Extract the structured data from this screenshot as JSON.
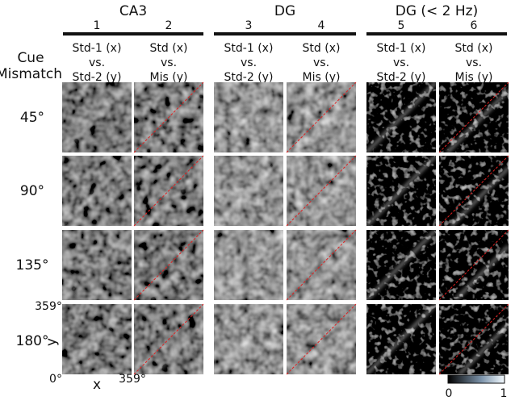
{
  "groups": [
    {
      "title": "CA3",
      "columns": [
        {
          "number": "1",
          "label": [
            "Std-1 (x)",
            "vs.",
            "Std-2 (y)"
          ]
        },
        {
          "number": "2",
          "label": [
            "Std (x)",
            "vs.",
            "Mis (y)"
          ]
        }
      ]
    },
    {
      "title": "DG",
      "columns": [
        {
          "number": "3",
          "label": [
            "Std-1 (x)",
            "vs.",
            "Std-2 (y)"
          ]
        },
        {
          "number": "4",
          "label": [
            "Std (x)",
            "vs.",
            "Mis (y)"
          ]
        }
      ]
    },
    {
      "title": "DG (< 2 Hz)",
      "columns": [
        {
          "number": "5",
          "label": [
            "Std-1 (x)",
            "vs.",
            "Std-2 (y)"
          ]
        },
        {
          "number": "6",
          "label": [
            "Std (x)",
            "vs.",
            "Mis (y)"
          ]
        }
      ]
    }
  ],
  "row_header": [
    "Cue",
    "Mismatch"
  ],
  "rows": [
    "45°",
    "90°",
    "135°",
    "180°"
  ],
  "axis": {
    "y_max": "359°",
    "y_label": "y",
    "x_min": "0°",
    "x_label": "x",
    "x_max": "359°"
  },
  "colorbar": {
    "min": 0,
    "max": 1
  }
}
